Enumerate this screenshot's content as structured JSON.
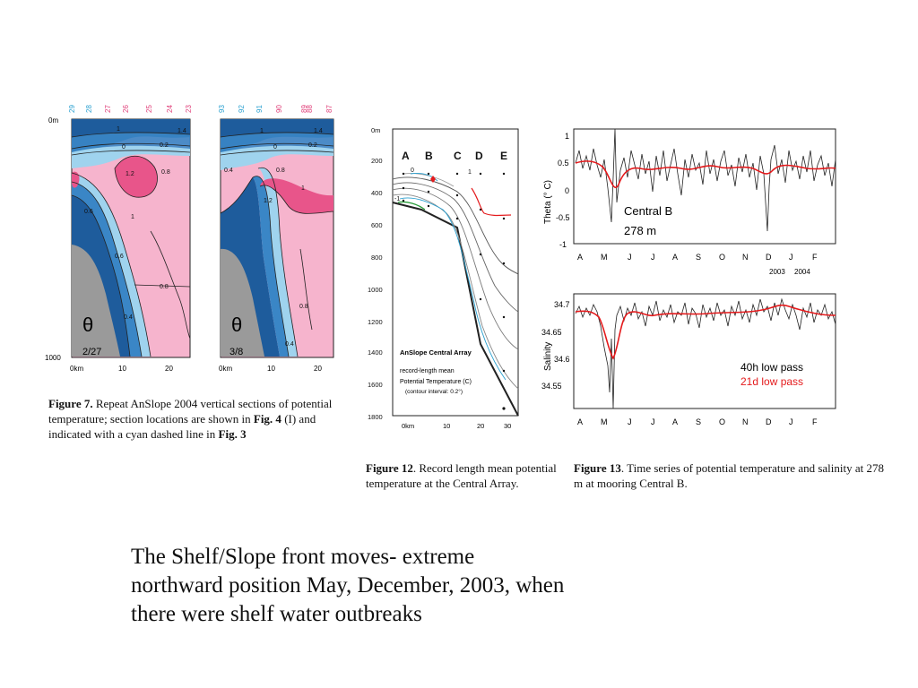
{
  "fig7": {
    "top_ticks_left": [
      "29",
      "28",
      "27",
      "26",
      "25",
      "24",
      "23"
    ],
    "top_ticks_right": [
      "93",
      "92",
      "91",
      "90",
      "89",
      "88",
      "87"
    ],
    "y_top": "0m",
    "y_bottom": "1000",
    "x_ticks": [
      "0km",
      "10",
      "20"
    ],
    "x_ticks_right": [
      "0km",
      "10",
      "20"
    ],
    "contours_left": [
      "1.4",
      "1",
      "0.2",
      "0",
      "1.2",
      "0.8",
      "1",
      "0.6",
      "0.4",
      "0.8",
      "0.6"
    ],
    "contours_right": [
      "1.4",
      "1",
      "0.2",
      "0",
      "0.4",
      "0.8",
      "1",
      "1.2",
      "0.8",
      "0.4"
    ],
    "symbol": "θ",
    "date_left": "2/27",
    "date_right": "3/8",
    "caption_label": "Figure 7.",
    "caption_a": " Repeat AnSlope 2004 vertical sections of potential temperature; section locations are shown in ",
    "caption_b1": "Fig. 4",
    "caption_c": " (I) and indicated with a cyan dashed line in ",
    "caption_b2": "Fig. 3"
  },
  "fig12": {
    "y_ticks": [
      "0m",
      "200",
      "400",
      "600",
      "800",
      "1000",
      "1200",
      "1400",
      "1600",
      "1800"
    ],
    "x_ticks": [
      "0km",
      "10",
      "20",
      "30"
    ],
    "stations": [
      "A",
      "B",
      "C",
      "D",
      "E"
    ],
    "contour_labels": [
      "0",
      "-1",
      "1"
    ],
    "legend_title": "AnSlope Central Array",
    "legend_line1": "record-length mean",
    "legend_line2": "Potential Temperature (C)",
    "legend_line3": "(contour interval: 0.2°)",
    "caption_label": "Figure 12",
    "caption_text": ". Record length mean potential temperature at the Central Array."
  },
  "fig13": {
    "top_ylabel": "Theta (° C)",
    "top_yticks": [
      "1",
      "0.5",
      "0",
      "-0.5",
      "-1"
    ],
    "bottom_ylabel": "Salinity",
    "bottom_yticks": [
      "34.7",
      "34.65",
      "34.6",
      "34.55"
    ],
    "months": [
      "A",
      "M",
      "J",
      "J",
      "A",
      "S",
      "O",
      "N",
      "D",
      "J",
      "F"
    ],
    "years": [
      "2003",
      "2004"
    ],
    "station_name": "Central B",
    "station_depth": "278 m",
    "legend_40h": "40h low pass",
    "legend_21d": "21d low pass",
    "color_40h": "#222222",
    "color_21d": "#e41a1c",
    "caption_label": "Figure 13",
    "caption_text": ". Time series of potential temperature and salinity at 278 m at mooring Central B."
  },
  "slide_text": {
    "line1": "The Shelf/Slope front moves- extreme",
    "line2": "northward position May, December, 2003, when",
    "line3": "there were shelf water outbreaks"
  }
}
